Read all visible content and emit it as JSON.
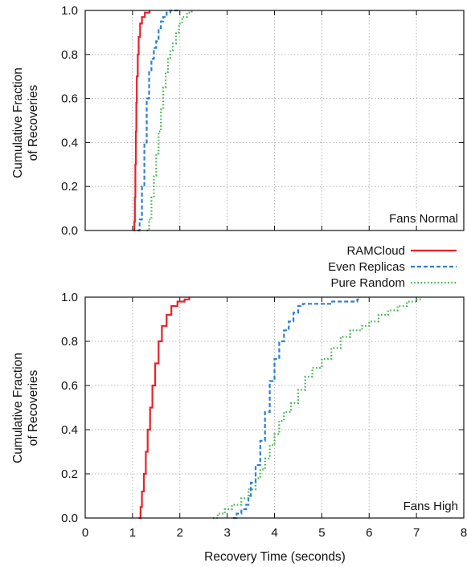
{
  "chart_data": [
    {
      "type": "line",
      "annotation": "Fans Normal",
      "ylabel": [
        "Cumulative Fraction",
        "of Recoveries"
      ],
      "xlabel": "",
      "xlim": [
        0,
        8
      ],
      "ylim": [
        0,
        1
      ],
      "xticks": [
        0,
        1,
        2,
        3,
        4,
        5,
        6,
        7,
        8
      ],
      "yticks": [
        "0.0",
        "0.2",
        "0.4",
        "0.6",
        "0.8",
        "1.0"
      ],
      "show_x_tick_labels": false,
      "grid": true,
      "series": [
        {
          "name": "RAMCloud",
          "color": "#e8202a",
          "dash": "solid",
          "points": [
            [
              1.03,
              0
            ],
            [
              1.04,
              0.04
            ],
            [
              1.05,
              0.15
            ],
            [
              1.06,
              0.3
            ],
            [
              1.07,
              0.45
            ],
            [
              1.08,
              0.58
            ],
            [
              1.09,
              0.7
            ],
            [
              1.11,
              0.8
            ],
            [
              1.13,
              0.88
            ],
            [
              1.16,
              0.94
            ],
            [
              1.2,
              0.97
            ],
            [
              1.26,
              0.99
            ],
            [
              1.36,
              1.0
            ]
          ]
        },
        {
          "name": "Even Replicas",
          "color": "#2f7fd0",
          "dash": "dashed",
          "points": [
            [
              1.1,
              0
            ],
            [
              1.15,
              0.05
            ],
            [
              1.2,
              0.2
            ],
            [
              1.25,
              0.4
            ],
            [
              1.3,
              0.6
            ],
            [
              1.35,
              0.72
            ],
            [
              1.4,
              0.78
            ],
            [
              1.45,
              0.83
            ],
            [
              1.5,
              0.86
            ],
            [
              1.55,
              0.92
            ],
            [
              1.6,
              0.95
            ],
            [
              1.65,
              0.97
            ],
            [
              1.72,
              0.99
            ],
            [
              1.8,
              1.0
            ],
            [
              2.0,
              1.0
            ]
          ]
        },
        {
          "name": "Pure Random",
          "color": "#3cb44a",
          "dash": "dotted",
          "points": [
            [
              1.3,
              0
            ],
            [
              1.35,
              0.05
            ],
            [
              1.4,
              0.15
            ],
            [
              1.45,
              0.25
            ],
            [
              1.5,
              0.35
            ],
            [
              1.55,
              0.45
            ],
            [
              1.6,
              0.55
            ],
            [
              1.65,
              0.65
            ],
            [
              1.7,
              0.72
            ],
            [
              1.75,
              0.78
            ],
            [
              1.8,
              0.82
            ],
            [
              1.85,
              0.85
            ],
            [
              1.92,
              0.9
            ],
            [
              1.98,
              0.94
            ],
            [
              2.05,
              0.97
            ],
            [
              2.15,
              0.99
            ],
            [
              2.25,
              1.0
            ]
          ]
        }
      ]
    },
    {
      "type": "line",
      "annotation": "Fans High",
      "ylabel": [
        "Cumulative Fraction",
        "of Recoveries"
      ],
      "xlabel": "Recovery Time (seconds)",
      "xlim": [
        0,
        8
      ],
      "ylim": [
        0,
        1
      ],
      "xticks": [
        0,
        1,
        2,
        3,
        4,
        5,
        6,
        7,
        8
      ],
      "yticks": [
        "0.0",
        "0.2",
        "0.4",
        "0.6",
        "0.8",
        "1.0"
      ],
      "show_x_tick_labels": true,
      "grid": true,
      "series": [
        {
          "name": "RAMCloud",
          "color": "#e8202a",
          "dash": "solid",
          "points": [
            [
              1.13,
              0
            ],
            [
              1.17,
              0.05
            ],
            [
              1.2,
              0.12
            ],
            [
              1.24,
              0.2
            ],
            [
              1.28,
              0.3
            ],
            [
              1.32,
              0.4
            ],
            [
              1.37,
              0.5
            ],
            [
              1.42,
              0.6
            ],
            [
              1.48,
              0.7
            ],
            [
              1.55,
              0.8
            ],
            [
              1.62,
              0.87
            ],
            [
              1.72,
              0.92
            ],
            [
              1.82,
              0.96
            ],
            [
              1.95,
              0.98
            ],
            [
              2.1,
              0.99
            ],
            [
              2.2,
              1.0
            ]
          ]
        },
        {
          "name": "Even Replicas",
          "color": "#2f7fd0",
          "dash": "dashed",
          "points": [
            [
              3.12,
              0
            ],
            [
              3.2,
              0.02
            ],
            [
              3.3,
              0.04
            ],
            [
              3.4,
              0.06
            ],
            [
              3.45,
              0.1
            ],
            [
              3.5,
              0.16
            ],
            [
              3.6,
              0.24
            ],
            [
              3.7,
              0.35
            ],
            [
              3.8,
              0.48
            ],
            [
              3.9,
              0.62
            ],
            [
              4.0,
              0.72
            ],
            [
              4.1,
              0.8
            ],
            [
              4.2,
              0.85
            ],
            [
              4.3,
              0.89
            ],
            [
              4.4,
              0.93
            ],
            [
              4.5,
              0.96
            ],
            [
              4.6,
              0.97
            ],
            [
              5.0,
              0.97
            ],
            [
              5.2,
              0.98
            ],
            [
              5.6,
              0.98
            ],
            [
              5.75,
              0.99
            ],
            [
              5.8,
              1.0
            ]
          ]
        },
        {
          "name": "Pure Random",
          "color": "#3cb44a",
          "dash": "dotted",
          "points": [
            [
              2.7,
              0
            ],
            [
              2.8,
              0.02
            ],
            [
              2.95,
              0.04
            ],
            [
              3.1,
              0.06
            ],
            [
              3.3,
              0.09
            ],
            [
              3.45,
              0.13
            ],
            [
              3.6,
              0.18
            ],
            [
              3.7,
              0.22
            ],
            [
              3.8,
              0.27
            ],
            [
              3.9,
              0.33
            ],
            [
              4.0,
              0.38
            ],
            [
              4.1,
              0.44
            ],
            [
              4.2,
              0.48
            ],
            [
              4.35,
              0.52
            ],
            [
              4.5,
              0.58
            ],
            [
              4.65,
              0.64
            ],
            [
              4.8,
              0.68
            ],
            [
              5.0,
              0.72
            ],
            [
              5.2,
              0.77
            ],
            [
              5.4,
              0.82
            ],
            [
              5.6,
              0.85
            ],
            [
              5.85,
              0.87
            ],
            [
              6.0,
              0.89
            ],
            [
              6.2,
              0.92
            ],
            [
              6.4,
              0.94
            ],
            [
              6.6,
              0.96
            ],
            [
              6.8,
              0.98
            ],
            [
              7.0,
              0.99
            ],
            [
              7.1,
              1.0
            ]
          ]
        }
      ]
    }
  ],
  "legend": {
    "position": "between panels, right",
    "entries": [
      {
        "label": "RAMCloud",
        "color": "#e8202a",
        "dash": "solid"
      },
      {
        "label": "Even Replicas",
        "color": "#2f7fd0",
        "dash": "dashed"
      },
      {
        "label": "Pure Random",
        "color": "#3cb44a",
        "dash": "dotted"
      }
    ]
  }
}
